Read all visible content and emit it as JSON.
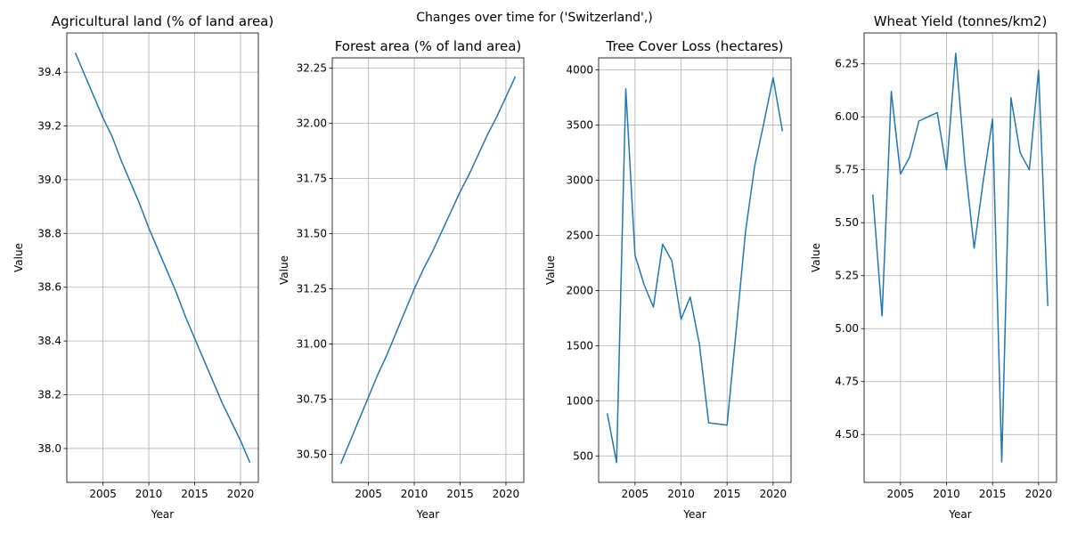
{
  "figure": {
    "suptitle": "Changes over time for ('Switzerland',)"
  },
  "colors": {
    "series": "#1f77b4",
    "grid": "#b0b0b0"
  },
  "chart_data": [
    {
      "type": "line",
      "title": "Agricultural land (% of land area)",
      "xlabel": "Year",
      "ylabel": "Value",
      "grid": true,
      "xlim": [
        2001.05,
        2021.95
      ],
      "ylim": [
        37.874,
        39.546
      ],
      "xticks": [
        2005,
        2010,
        2015,
        2020
      ],
      "yticks": [
        38.0,
        38.2,
        38.4,
        38.6,
        38.8,
        39.0,
        39.2,
        39.4
      ],
      "ytick_decimals": 1,
      "x": [
        2002,
        2003,
        2004,
        2005,
        2006,
        2007,
        2008,
        2009,
        2010,
        2011,
        2012,
        2013,
        2014,
        2015,
        2016,
        2017,
        2018,
        2019,
        2020,
        2021
      ],
      "series": [
        {
          "values": [
            39.47,
            39.39,
            39.31,
            39.23,
            39.16,
            39.07,
            38.99,
            38.91,
            38.82,
            38.74,
            38.66,
            38.58,
            38.49,
            38.41,
            38.33,
            38.25,
            38.17,
            38.1,
            38.03,
            37.95
          ]
        }
      ]
    },
    {
      "type": "line",
      "title": "Forest area (% of land area)",
      "xlabel": "Year",
      "ylabel": "Value",
      "grid": true,
      "xlim": [
        2001.05,
        2021.95
      ],
      "ylim": [
        30.373,
        32.297
      ],
      "xticks": [
        2005,
        2010,
        2015,
        2020
      ],
      "yticks": [
        30.5,
        30.75,
        31.0,
        31.25,
        31.5,
        31.75,
        32.0,
        32.25
      ],
      "ytick_decimals": 2,
      "x": [
        2002,
        2003,
        2004,
        2005,
        2006,
        2007,
        2008,
        2009,
        2010,
        2011,
        2012,
        2013,
        2014,
        2015,
        2016,
        2017,
        2018,
        2019,
        2020,
        2021
      ],
      "series": [
        {
          "values": [
            30.46,
            30.56,
            30.66,
            30.76,
            30.86,
            30.95,
            31.05,
            31.15,
            31.25,
            31.34,
            31.42,
            31.51,
            31.6,
            31.69,
            31.77,
            31.86,
            31.95,
            32.03,
            32.12,
            32.21
          ]
        }
      ]
    },
    {
      "type": "line",
      "title": "Tree Cover Loss (hectares)",
      "xlabel": "Year",
      "ylabel": "Value",
      "grid": true,
      "xlim": [
        2001.05,
        2021.95
      ],
      "ylim": [
        260,
        4110
      ],
      "xticks": [
        2005,
        2010,
        2015,
        2020
      ],
      "yticks": [
        500,
        1000,
        1500,
        2000,
        2500,
        3000,
        3500,
        4000
      ],
      "ytick_decimals": 0,
      "x": [
        2002,
        2003,
        2004,
        2005,
        2006,
        2007,
        2008,
        2009,
        2010,
        2011,
        2012,
        2013,
        2014,
        2015,
        2016,
        2017,
        2018,
        2019,
        2020,
        2021
      ],
      "series": [
        {
          "values": [
            880,
            440,
            3830,
            2320,
            2050,
            1850,
            2420,
            2270,
            1740,
            1940,
            1510,
            800,
            790,
            780,
            1650,
            2530,
            3130,
            3520,
            3930,
            3450
          ]
        }
      ]
    },
    {
      "type": "line",
      "title": "Wheat Yield (tonnes/km2)",
      "xlabel": "Year",
      "ylabel": "Value",
      "grid": true,
      "xlim": [
        2001.05,
        2021.95
      ],
      "ylim": [
        4.274,
        6.396
      ],
      "xticks": [
        2005,
        2010,
        2015,
        2020
      ],
      "yticks": [
        4.5,
        4.75,
        5.0,
        5.25,
        5.5,
        5.75,
        6.0,
        6.25
      ],
      "ytick_decimals": 2,
      "x": [
        2002,
        2003,
        2004,
        2005,
        2006,
        2007,
        2008,
        2009,
        2010,
        2011,
        2012,
        2013,
        2014,
        2015,
        2016,
        2017,
        2018,
        2019,
        2020,
        2021
      ],
      "series": [
        {
          "values": [
            5.63,
            5.06,
            6.12,
            5.73,
            5.81,
            5.98,
            6.0,
            6.02,
            5.75,
            6.3,
            5.78,
            5.38,
            5.7,
            5.99,
            4.37,
            6.09,
            5.83,
            5.75,
            6.22,
            5.11
          ]
        }
      ]
    }
  ]
}
